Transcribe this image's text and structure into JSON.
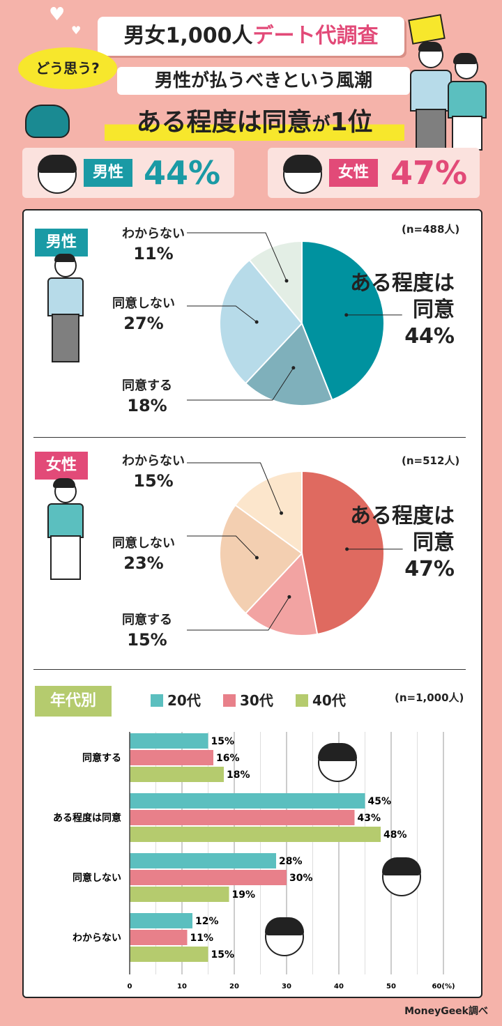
{
  "header": {
    "title_main": "男女1,000人",
    "title_red": "デート代調査",
    "bubble": "どう思う?",
    "subtitle": "男性が払うべきという風潮",
    "headline_main": "ある程度は同意",
    "headline_small": "が",
    "headline_rank": "1位"
  },
  "summary": {
    "male_label": "男性",
    "male_value": "44%",
    "female_label": "女性",
    "female_value": "47%"
  },
  "colors": {
    "teal": "#1a9aa5",
    "pink": "#e24a78",
    "age20": "#5bbfbf",
    "age30": "#e8808a",
    "age40": "#b5cb6e",
    "male_slices": [
      "#00929f",
      "#7fb0bb",
      "#b7dbe9",
      "#e3eee5"
    ],
    "female_slices": [
      "#df6a60",
      "#f2a3a2",
      "#f3cfb1",
      "#fce6cc"
    ]
  },
  "credit": "MoneyGeek調べ",
  "chart_data": [
    {
      "type": "pie",
      "group": "男性",
      "n": "(n=488人)",
      "labels": [
        "ある程度は同意",
        "同意する",
        "同意しない",
        "わからない"
      ],
      "values": [
        44,
        18,
        27,
        11
      ],
      "label_text": {
        "main_a": "ある程度は",
        "main_b": "同意",
        "main_pct": "44%",
        "agree": "同意する",
        "agree_pct": "18%",
        "disagree": "同意しない",
        "disagree_pct": "27%",
        "unknown": "わからない",
        "unknown_pct": "11%"
      }
    },
    {
      "type": "pie",
      "group": "女性",
      "n": "(n=512人)",
      "labels": [
        "ある程度は同意",
        "同意する",
        "同意しない",
        "わからない"
      ],
      "values": [
        47,
        15,
        23,
        15
      ],
      "label_text": {
        "main_a": "ある程度は",
        "main_b": "同意",
        "main_pct": "47%",
        "agree": "同意する",
        "agree_pct": "15%",
        "disagree": "同意しない",
        "disagree_pct": "23%",
        "unknown": "わからない",
        "unknown_pct": "15%"
      }
    },
    {
      "type": "bar",
      "orientation": "horizontal",
      "title": "年代別",
      "n": "(n=1,000人)",
      "categories": [
        "同意する",
        "ある程度は同意",
        "同意しない",
        "わからない"
      ],
      "series": [
        {
          "name": "20代",
          "values": [
            15,
            45,
            28,
            12
          ]
        },
        {
          "name": "30代",
          "values": [
            16,
            43,
            30,
            11
          ]
        },
        {
          "name": "40代",
          "values": [
            18,
            48,
            19,
            15
          ]
        }
      ],
      "xlim": [
        0,
        60
      ],
      "ticks": [
        "0",
        "10",
        "20",
        "30",
        "40",
        "50",
        "60(%)"
      ],
      "grid": true
    }
  ]
}
